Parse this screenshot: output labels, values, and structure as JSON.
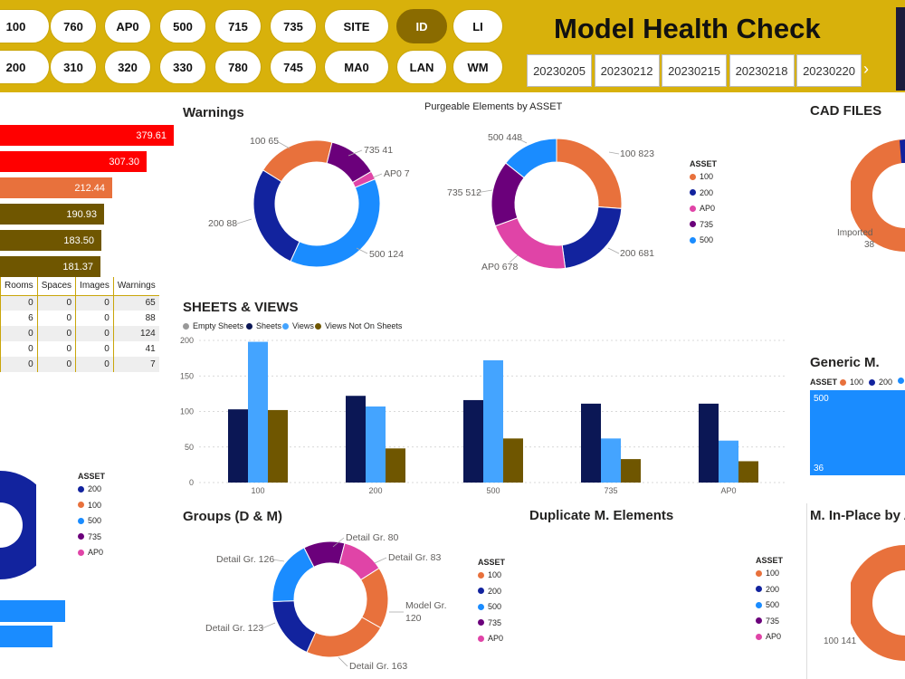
{
  "header": {
    "title": "Model Health Check",
    "filters_row1": [
      "100",
      "760",
      "AP0",
      "500",
      "715",
      "735",
      "SITE",
      "ID",
      "LI"
    ],
    "filters_row2": [
      "200",
      "310",
      "320",
      "330",
      "780",
      "745",
      "MA0",
      "LAN",
      "WM"
    ],
    "dates": [
      "20230205",
      "20230212",
      "20230215",
      "20230218",
      "20230220"
    ],
    "arrow": "›"
  },
  "left_bars": {
    "values": [
      "379.61",
      "307.30",
      "212.44",
      "190.93",
      "183.50",
      "181.37"
    ]
  },
  "asset_table": {
    "columns": [
      "Rooms",
      "Spaces",
      "Images",
      "Warnings"
    ],
    "rows": [
      [
        "0",
        "0",
        "0",
        "65"
      ],
      [
        "6",
        "0",
        "0",
        "88"
      ],
      [
        "0",
        "0",
        "0",
        "124"
      ],
      [
        "0",
        "0",
        "0",
        "41"
      ],
      [
        "0",
        "0",
        "0",
        "7"
      ]
    ]
  },
  "left_legend": {
    "title": "ASSET",
    "items": [
      "200",
      "100",
      "500",
      "735",
      "AP0"
    ]
  },
  "warnings": {
    "title": "Warnings"
  },
  "purgeable": {
    "title": "Purgeable Elements by ASSET",
    "legend_title": "ASSET",
    "legend": [
      "100",
      "200",
      "AP0",
      "735",
      "500"
    ]
  },
  "cad": {
    "title": "CAD FILES",
    "label": "Imported",
    "value": "38"
  },
  "sheets": {
    "title": "SHEETS & VIEWS"
  },
  "generic": {
    "title": "Generic M.",
    "legend_title": "ASSET",
    "legend": [
      "100",
      "200",
      ""
    ],
    "bar_label": "500",
    "bar_value": "36"
  },
  "groups": {
    "title": "Groups (D & M)"
  },
  "duplicate": {
    "title": "Duplicate M. Elements",
    "legend_title": "ASSET",
    "legend": [
      "100",
      "200",
      "500",
      "735",
      "AP0"
    ],
    "legend2_title": "ASSET",
    "legend2": [
      "100",
      "200",
      "500",
      "735",
      "AP0"
    ]
  },
  "inplace": {
    "title": "M. In-Place by A",
    "label": "100 141"
  },
  "colors": {
    "100": "#e8713c",
    "200": "#12239e",
    "500": "#1a8cff",
    "735": "#6b007b",
    "AP0": "#e044a7",
    "red": "#ff0000",
    "olive": "#6f5600",
    "navy": "#0b1755",
    "gold": "#d8b10b"
  },
  "chart_data": [
    {
      "type": "pie",
      "name": "warnings",
      "slices": [
        {
          "label": "100",
          "value": 65
        },
        {
          "label": "735",
          "value": 41
        },
        {
          "label": "AP0",
          "value": 7
        },
        {
          "label": "500",
          "value": 124
        },
        {
          "label": "200",
          "value": 88
        }
      ],
      "labels": [
        "100 65",
        "735 41",
        "AP0 7",
        "500 124",
        "200 88"
      ]
    },
    {
      "type": "pie",
      "name": "purgeable",
      "slices": [
        {
          "label": "100",
          "value": 823
        },
        {
          "label": "200",
          "value": 681
        },
        {
          "label": "AP0",
          "value": 678
        },
        {
          "label": "735",
          "value": 512
        },
        {
          "label": "500",
          "value": 448
        }
      ],
      "labels": [
        "100 823",
        "200 681",
        "AP0 678",
        "735 512",
        "500 448"
      ]
    },
    {
      "type": "bar",
      "name": "sheets_views",
      "categories": [
        "100",
        "200",
        "500",
        "735",
        "AP0"
      ],
      "legend": [
        "Empty Sheets",
        "Sheets",
        "Views",
        "Views Not On Sheets"
      ],
      "series": [
        {
          "name": "Empty Sheets",
          "values": [
            0,
            0,
            0,
            0,
            0
          ]
        },
        {
          "name": "Sheets",
          "values": [
            103,
            122,
            116,
            111,
            111
          ]
        },
        {
          "name": "Views",
          "values": [
            198,
            107,
            172,
            62,
            59
          ]
        },
        {
          "name": "Views Not On Sheets",
          "values": [
            102,
            48,
            62,
            33,
            30
          ]
        }
      ],
      "ylim": [
        0,
        200
      ],
      "yticks": [
        "0",
        "50",
        "100",
        "150",
        "200"
      ]
    },
    {
      "type": "pie",
      "name": "groups",
      "slices": [
        {
          "label": "Detail Gr. 80",
          "value": 80
        },
        {
          "label": "Detail Gr. 83",
          "value": 83
        },
        {
          "label": "Model Gr. 120",
          "value": 120
        },
        {
          "label": "Detail Gr. 163",
          "value": 163
        },
        {
          "label": "Detail Gr. 123",
          "value": 123
        },
        {
          "label": "Detail Gr. 126",
          "value": 126
        }
      ],
      "labels": [
        "Detail Gr. 80",
        "Detail Gr. 83",
        "Model Gr.",
        "120",
        "Detail Gr. 163",
        "Detail Gr. 123",
        "Detail Gr. 126"
      ]
    }
  ]
}
